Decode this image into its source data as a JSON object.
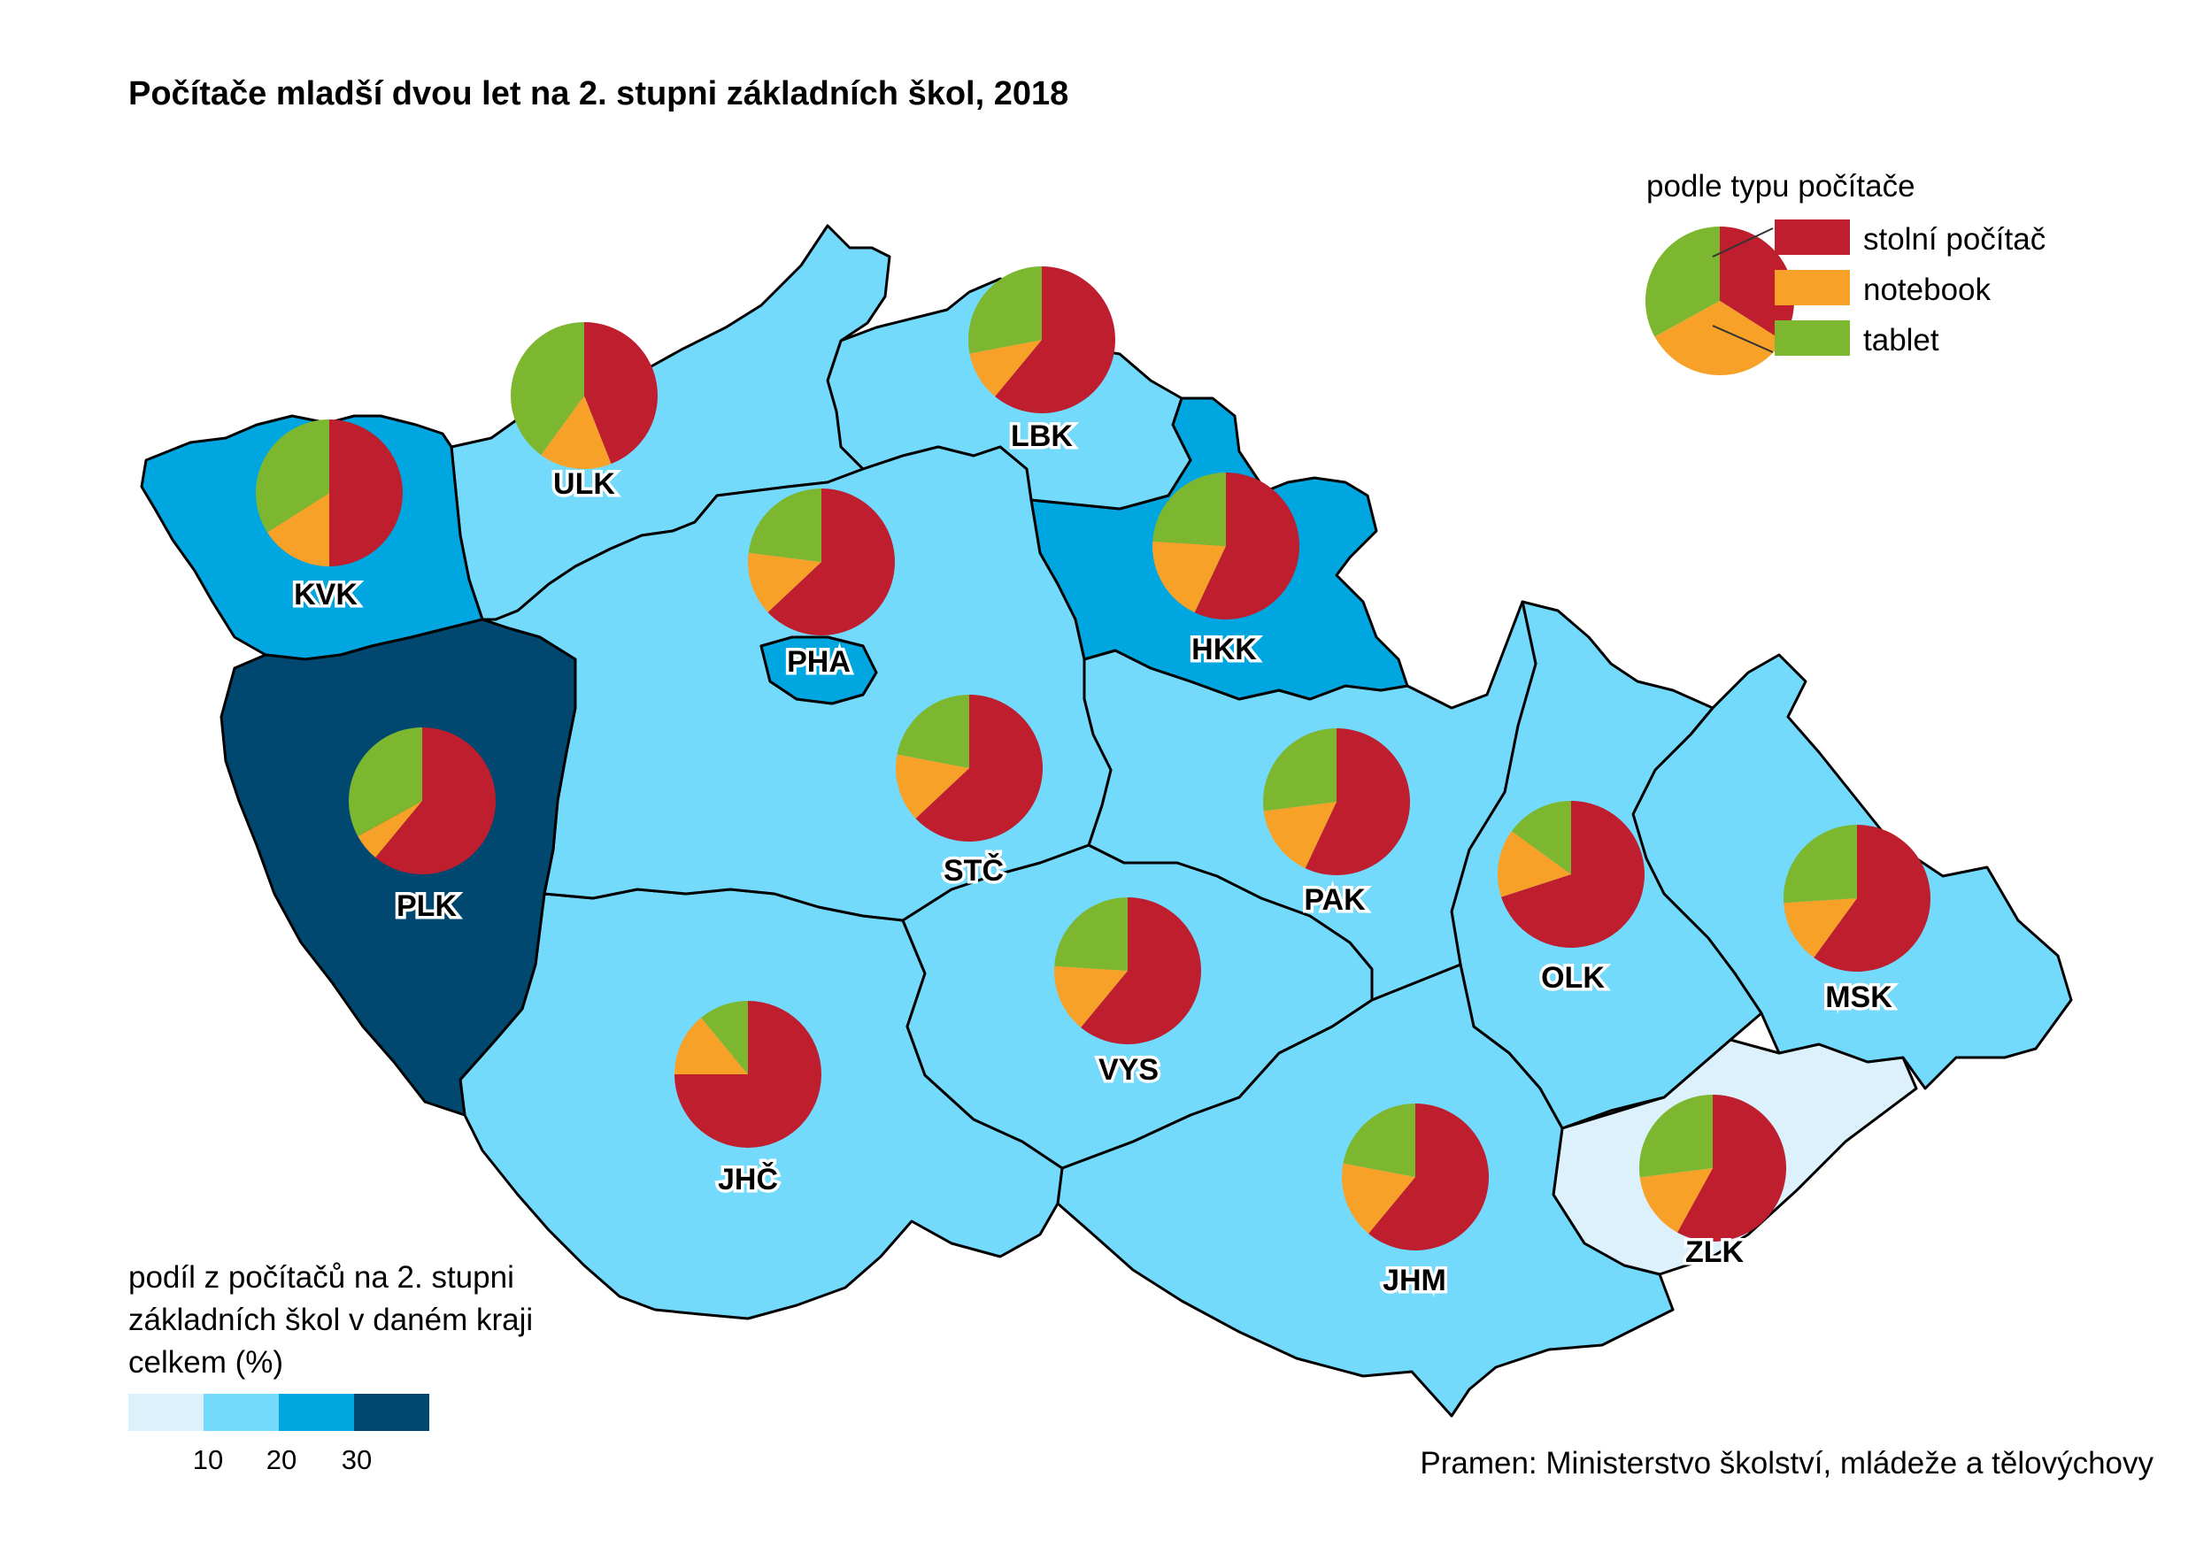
{
  "title": "Počítače mladší dvou let na 2. stupni základních škol, 2018",
  "source": "Pramen: Ministerstvo školství, mládeže a tělovýchovy",
  "pie_legend": {
    "title": "podle typu počítače",
    "items": [
      {
        "label": "stolní počítač",
        "color": "#be1e2d"
      },
      {
        "label": "notebook",
        "color": "#f7a128"
      },
      {
        "label": "tablet",
        "color": "#7db72f"
      }
    ]
  },
  "choropleth_legend": {
    "title_lines": [
      "podíl z počítačů na 2. stupni",
      "základních škol v daném kraji",
      "celkem (%)"
    ],
    "classes": [
      {
        "color": "#ddf1fc"
      },
      {
        "color": "#74dafb"
      },
      {
        "color": "#00a6e0"
      },
      {
        "color": "#004870"
      }
    ],
    "ticks": [
      "10",
      "20",
      "30"
    ]
  },
  "chart_data": {
    "type": "pie",
    "series_names": [
      "stolní počítač",
      "notebook",
      "tablet"
    ],
    "regions": [
      {
        "code": "KVK",
        "share_class": 2,
        "desktop": 0.5,
        "notebook": 0.16,
        "tablet": 0.34
      },
      {
        "code": "ULK",
        "share_class": 1,
        "desktop": 0.44,
        "notebook": 0.16,
        "tablet": 0.4
      },
      {
        "code": "LBK",
        "share_class": 1,
        "desktop": 0.61,
        "notebook": 0.11,
        "tablet": 0.28
      },
      {
        "code": "HKK",
        "share_class": 2,
        "desktop": 0.57,
        "notebook": 0.19,
        "tablet": 0.24
      },
      {
        "code": "PHA",
        "share_class": 2,
        "desktop": 0.63,
        "notebook": 0.14,
        "tablet": 0.23
      },
      {
        "code": "STČ",
        "share_class": 1,
        "desktop": 0.63,
        "notebook": 0.15,
        "tablet": 0.22
      },
      {
        "code": "PLK",
        "share_class": 3,
        "desktop": 0.61,
        "notebook": 0.06,
        "tablet": 0.33
      },
      {
        "code": "PAK",
        "share_class": 1,
        "desktop": 0.57,
        "notebook": 0.16,
        "tablet": 0.27
      },
      {
        "code": "OLK",
        "share_class": 1,
        "desktop": 0.7,
        "notebook": 0.15,
        "tablet": 0.15
      },
      {
        "code": "MSK",
        "share_class": 1,
        "desktop": 0.6,
        "notebook": 0.14,
        "tablet": 0.26
      },
      {
        "code": "VYS",
        "share_class": 1,
        "desktop": 0.61,
        "notebook": 0.15,
        "tablet": 0.24
      },
      {
        "code": "JHČ",
        "share_class": 1,
        "desktop": 0.75,
        "notebook": 0.14,
        "tablet": 0.11
      },
      {
        "code": "JHM",
        "share_class": 1,
        "desktop": 0.61,
        "notebook": 0.17,
        "tablet": 0.22
      },
      {
        "code": "ZLK",
        "share_class": 0,
        "desktop": 0.58,
        "notebook": 0.15,
        "tablet": 0.27
      }
    ]
  }
}
